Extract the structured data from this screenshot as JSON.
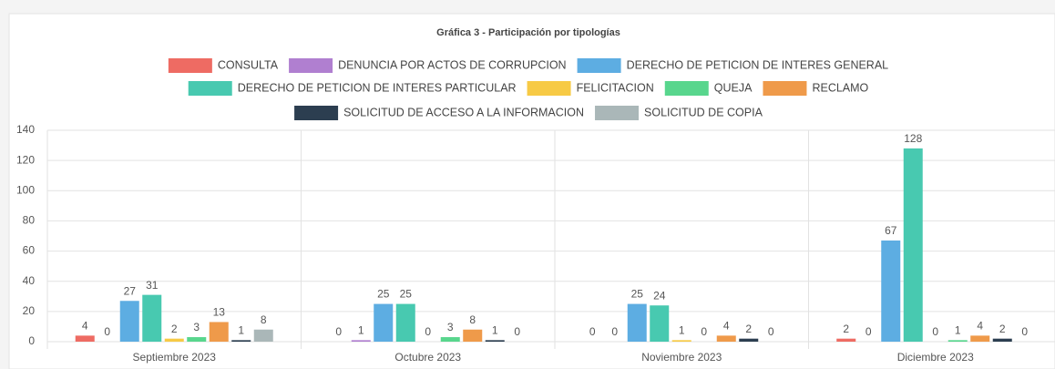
{
  "chart_data": {
    "type": "bar",
    "title": "Gráfica 3 - Participación por tipologías",
    "categories": [
      "Septiembre 2023",
      "Octubre 2023",
      "Noviembre 2023",
      "Diciembre 2023"
    ],
    "series": [
      {
        "name": "CONSULTA",
        "color": "#ee6b63",
        "values": [
          4,
          0,
          0,
          2
        ]
      },
      {
        "name": "DENUNCIA POR ACTOS DE CORRUPCION",
        "color": "#b07fd0",
        "values": [
          0,
          1,
          0,
          0
        ]
      },
      {
        "name": "DERECHO DE PETICION DE INTERES GENERAL",
        "color": "#5dade2",
        "values": [
          27,
          25,
          25,
          67
        ]
      },
      {
        "name": "DERECHO DE PETICION DE INTERES PARTICULAR",
        "color": "#48c9b0",
        "values": [
          31,
          25,
          24,
          128
        ]
      },
      {
        "name": "FELICITACION",
        "color": "#f7ca45",
        "values": [
          2,
          0,
          1,
          0
        ]
      },
      {
        "name": "QUEJA",
        "color": "#58d68d",
        "values": [
          3,
          3,
          0,
          1
        ]
      },
      {
        "name": "RECLAMO",
        "color": "#ef9a4a",
        "values": [
          13,
          8,
          4,
          4
        ]
      },
      {
        "name": "SOLICITUD DE ACCESO A LA INFORMACION",
        "color": "#2c3e50",
        "values": [
          1,
          1,
          2,
          2
        ]
      },
      {
        "name": "SOLICITUD DE COPIA",
        "color": "#aab7b8",
        "values": [
          8,
          0,
          0,
          0
        ]
      }
    ],
    "ylim": [
      0,
      140
    ],
    "yticks": [
      0,
      20,
      40,
      60,
      80,
      100,
      120,
      140
    ],
    "grid": true
  }
}
